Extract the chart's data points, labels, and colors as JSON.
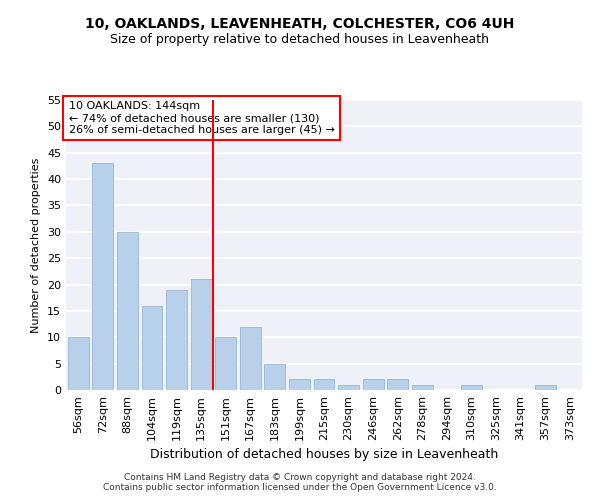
{
  "title": "10, OAKLANDS, LEAVENHEATH, COLCHESTER, CO6 4UH",
  "subtitle": "Size of property relative to detached houses in Leavenheath",
  "xlabel": "Distribution of detached houses by size in Leavenheath",
  "ylabel": "Number of detached properties",
  "categories": [
    "56sqm",
    "72sqm",
    "88sqm",
    "104sqm",
    "119sqm",
    "135sqm",
    "151sqm",
    "167sqm",
    "183sqm",
    "199sqm",
    "215sqm",
    "230sqm",
    "246sqm",
    "262sqm",
    "278sqm",
    "294sqm",
    "310sqm",
    "325sqm",
    "341sqm",
    "357sqm",
    "373sqm"
  ],
  "values": [
    10,
    43,
    30,
    16,
    19,
    21,
    10,
    12,
    5,
    2,
    2,
    1,
    2,
    2,
    1,
    0,
    1,
    0,
    0,
    1,
    0
  ],
  "bar_color": "#b8d0ea",
  "bar_edge_color": "#8ab0d0",
  "vline_x": 5.5,
  "vline_color": "red",
  "annotation_text": "10 OAKLANDS: 144sqm\n← 74% of detached houses are smaller (130)\n26% of semi-detached houses are larger (45) →",
  "annotation_box_color": "white",
  "annotation_box_edge": "red",
  "ylim": [
    0,
    55
  ],
  "yticks": [
    0,
    5,
    10,
    15,
    20,
    25,
    30,
    35,
    40,
    45,
    50,
    55
  ],
  "background_color": "#eef2f8",
  "grid_color": "white",
  "footer": "Contains HM Land Registry data © Crown copyright and database right 2024.\nContains public sector information licensed under the Open Government Licence v3.0.",
  "title_fontsize": 10,
  "subtitle_fontsize": 9,
  "xlabel_fontsize": 9,
  "ylabel_fontsize": 8,
  "tick_fontsize": 8,
  "annotation_fontsize": 8
}
